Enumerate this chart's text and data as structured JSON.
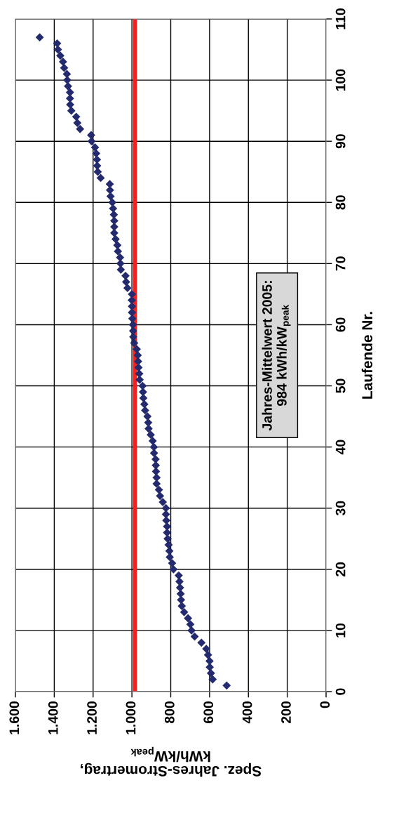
{
  "chart_data": {
    "type": "scatter",
    "ylabel": "Laufende Nr.",
    "xlabel": "Spez. Jahres-Stromertrag,\nkWh/kW$_{peak}$",
    "x": [
      512,
      584,
      593,
      599,
      600,
      608,
      617,
      642,
      677,
      693,
      699,
      711,
      731,
      743,
      747,
      749,
      752,
      755,
      759,
      786,
      793,
      805,
      807,
      811,
      816,
      819,
      819,
      823,
      825,
      825,
      841,
      855,
      861,
      873,
      873,
      876,
      877,
      878,
      886,
      887,
      893,
      903,
      914,
      916,
      920,
      932,
      936,
      941,
      943,
      945,
      960,
      962,
      966,
      968,
      970,
      975,
      988,
      993,
      994,
      995,
      998,
      1000,
      1000,
      1001,
      1000,
      1023,
      1030,
      1033,
      1057,
      1059,
      1061,
      1072,
      1075,
      1084,
      1091,
      1091,
      1091,
      1093,
      1097,
      1101,
      1110,
      1113,
      1114,
      1161,
      1176,
      1179,
      1180,
      1184,
      1190,
      1208,
      1210,
      1267,
      1281,
      1287,
      1312,
      1318,
      1319,
      1319,
      1329,
      1333,
      1335,
      1349,
      1355,
      1369,
      1381,
      1385,
      1475
    ],
    "series": [
      {
        "color": "#232a6e",
        "values": [
          1,
          2,
          3,
          4,
          5,
          6,
          7,
          8,
          9,
          10,
          11,
          12,
          13,
          14,
          15,
          16,
          17,
          18,
          19,
          20,
          21,
          22,
          23,
          24,
          25,
          26,
          27,
          28,
          29,
          30,
          31,
          32,
          33,
          34,
          35,
          36,
          37,
          38,
          39,
          40,
          41,
          42,
          43,
          44,
          45,
          46,
          47,
          48,
          49,
          50,
          51,
          52,
          53,
          54,
          55,
          56,
          57,
          58,
          59,
          60,
          61,
          62,
          63,
          64,
          65,
          66,
          67,
          68,
          69,
          70,
          71,
          72,
          73,
          74,
          75,
          76,
          77,
          78,
          79,
          80,
          81,
          82,
          83,
          84,
          85,
          86,
          87,
          88,
          89,
          90,
          91,
          92,
          93,
          94,
          95,
          96,
          97,
          98,
          99,
          100,
          101,
          102,
          103,
          104,
          105,
          106,
          107
        ]
      }
    ],
    "marker": "diamond",
    "ylim": [
      0,
      110
    ],
    "yticks": [
      0,
      10,
      20,
      30,
      40,
      50,
      60,
      70,
      80,
      90,
      100,
      110
    ],
    "xlim": [
      1600,
      0
    ],
    "xticks": [
      0,
      200,
      400,
      600,
      800,
      {
        "value": 1000,
        "label": "1.000"
      },
      {
        "value": 1200,
        "label": "1.200"
      },
      {
        "value": 1400,
        "label": "1.400"
      },
      {
        "value": 1600,
        "label": "1.600"
      }
    ],
    "grid": true,
    "ref_lines": [
      {
        "axis": "x",
        "value": 984,
        "color": "#ee2222"
      }
    ],
    "annotations": [
      "Jahres-Mittelwert 2005:\n984 kWh/kW$_{peak}$"
    ]
  }
}
